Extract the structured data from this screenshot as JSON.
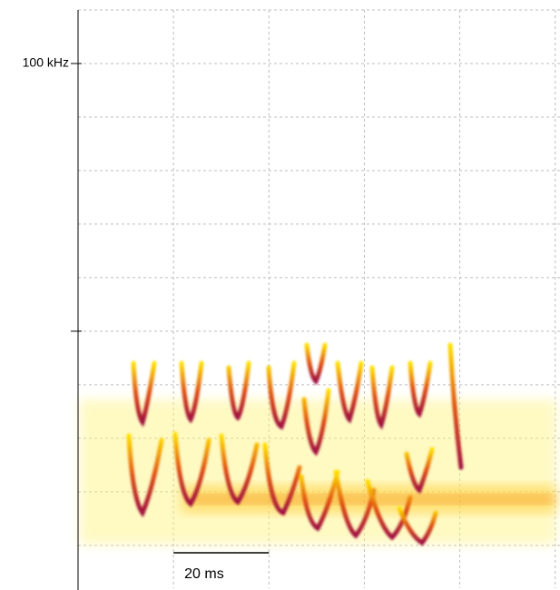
{
  "chart_data": {
    "type": "spectrogram",
    "yticks": [
      {
        "value": 100,
        "label": "100 kHz"
      },
      {
        "value": 50,
        "label": null
      }
    ],
    "ylim": [
      2,
      110
    ],
    "xlim": [
      0,
      101
    ],
    "ygrid": [
      10,
      20,
      30,
      40,
      50,
      60,
      70,
      80,
      90,
      100,
      110
    ],
    "xgrid": [
      20,
      40,
      60,
      80,
      100
    ],
    "grid": true,
    "scale_bar": {
      "label": "20 ms",
      "x": [
        20,
        40
      ]
    }
  }
}
